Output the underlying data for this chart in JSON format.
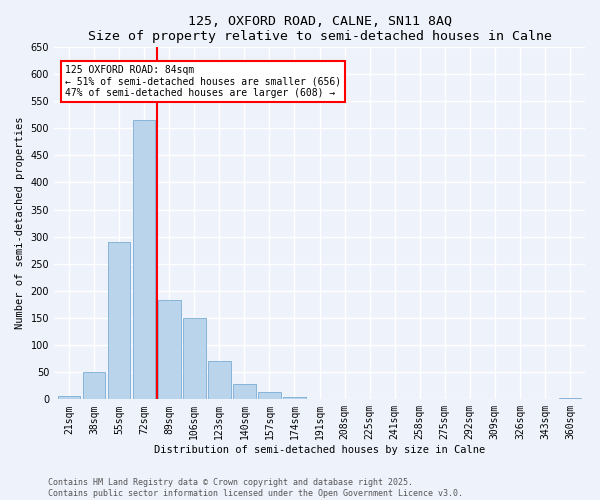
{
  "title1": "125, OXFORD ROAD, CALNE, SN11 8AQ",
  "title2": "Size of property relative to semi-detached houses in Calne",
  "xlabel": "Distribution of semi-detached houses by size in Calne",
  "ylabel": "Number of semi-detached properties",
  "categories": [
    "21sqm",
    "38sqm",
    "55sqm",
    "72sqm",
    "89sqm",
    "106sqm",
    "123sqm",
    "140sqm",
    "157sqm",
    "174sqm",
    "191sqm",
    "208sqm",
    "225sqm",
    "241sqm",
    "258sqm",
    "275sqm",
    "292sqm",
    "309sqm",
    "326sqm",
    "343sqm",
    "360sqm"
  ],
  "values": [
    7,
    50,
    290,
    515,
    183,
    150,
    70,
    28,
    14,
    4,
    1,
    0,
    0,
    0,
    0,
    0,
    0,
    0,
    0,
    0,
    2
  ],
  "bar_color": "#bad4ec",
  "bar_edge_color": "#7aadd4",
  "annotation_line1": "125 OXFORD ROAD: 84sqm",
  "annotation_line2": "← 51% of semi-detached houses are smaller (656)",
  "annotation_line3": "47% of semi-detached houses are larger (608) →",
  "ylim": [
    0,
    650
  ],
  "yticks": [
    0,
    50,
    100,
    150,
    200,
    250,
    300,
    350,
    400,
    450,
    500,
    550,
    600,
    650
  ],
  "footer1": "Contains HM Land Registry data © Crown copyright and database right 2025.",
  "footer2": "Contains public sector information licensed under the Open Government Licence v3.0.",
  "bg_color": "#eef2fb",
  "grid_color": "#ffffff",
  "bar_width": 0.9,
  "title_fontsize": 9.5,
  "label_fontsize": 7.5,
  "tick_fontsize": 7.0,
  "annot_fontsize": 7.0,
  "footer_fontsize": 6.0
}
